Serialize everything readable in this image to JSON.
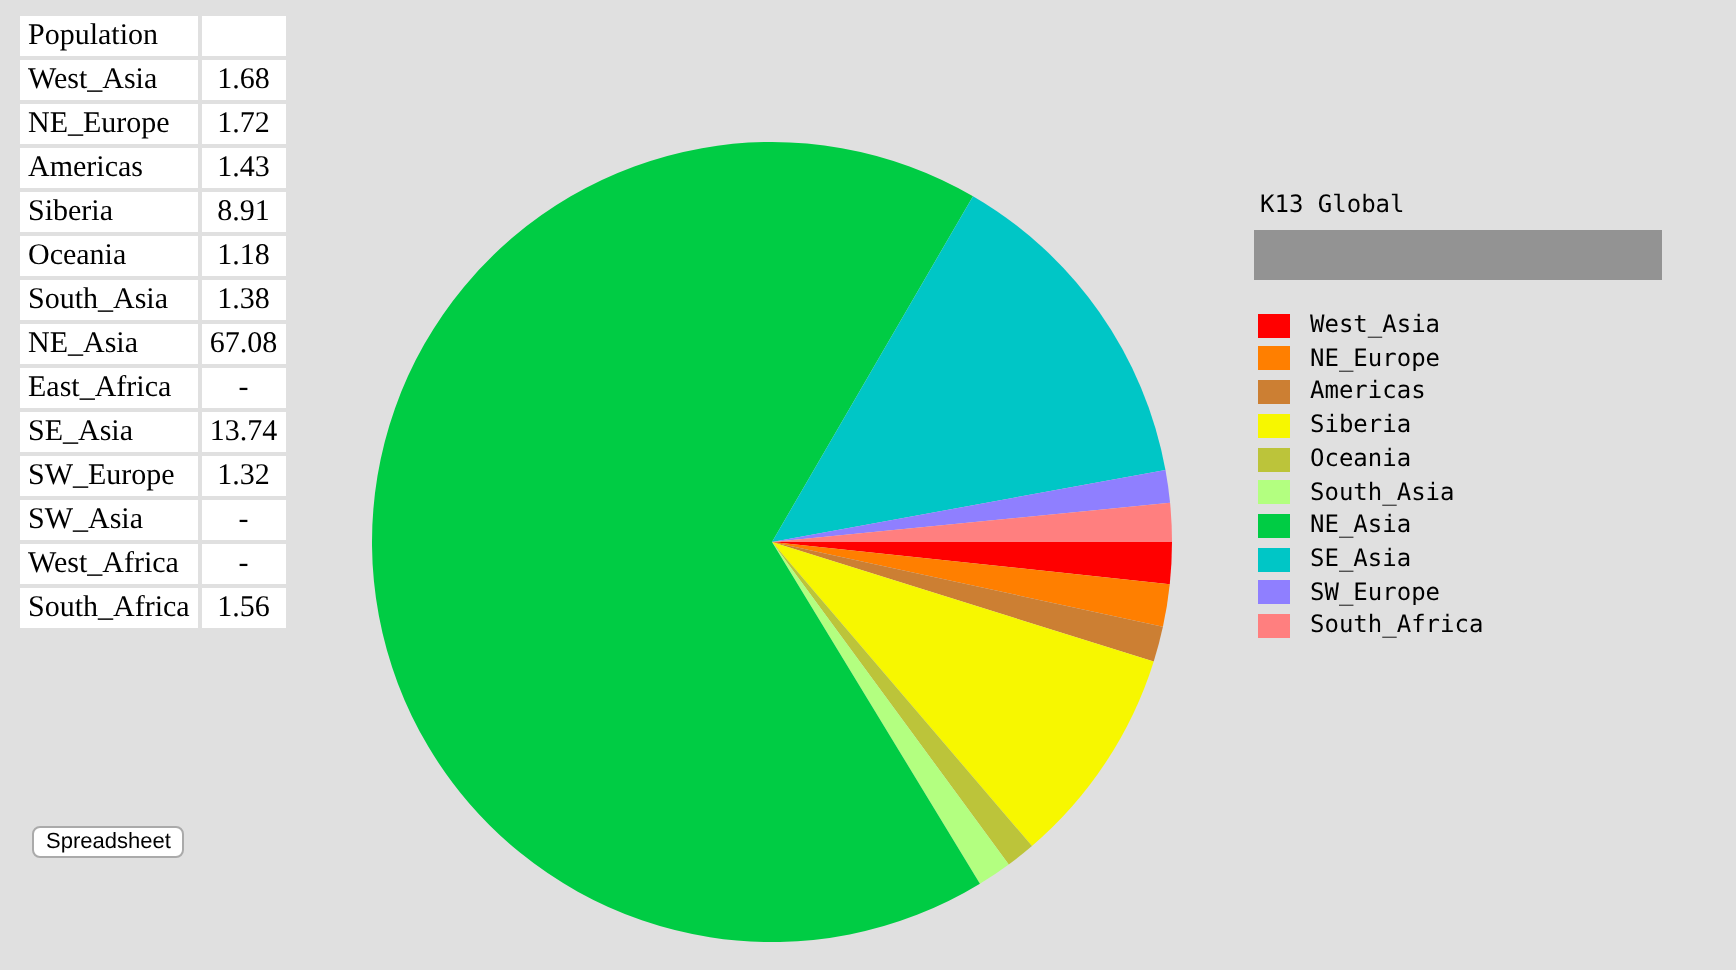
{
  "chart_data": [
    {
      "type": "other",
      "title": "Population",
      "data_labels": true,
      "categories": [
        "West_Asia",
        "NE_Europe",
        "Americas",
        "Siberia",
        "Oceania",
        "South_Asia",
        "NE_Asia",
        "East_Africa",
        "SE_Asia",
        "SW_Europe",
        "SW_Asia",
        "West_Africa",
        "South_Africa"
      ],
      "value_labels": [
        "1.68",
        "1.72",
        "1.43",
        "8.91",
        "1.18",
        "1.38",
        "67.08",
        "-",
        "13.74",
        "1.32",
        "-",
        "-",
        "1.56"
      ],
      "annotations": [
        "Spreadsheet"
      ]
    },
    {
      "type": "pie",
      "title": "K13 Global",
      "legend": "right",
      "categories": [
        "West_Asia",
        "NE_Europe",
        "Americas",
        "Siberia",
        "Oceania",
        "South_Asia",
        "NE_Asia",
        "SE_Asia",
        "SW_Europe",
        "South_Africa"
      ],
      "values": [
        1.68,
        1.72,
        1.43,
        8.91,
        1.18,
        1.38,
        67.08,
        13.74,
        1.32,
        1.56
      ],
      "colors": [
        "#ff0000",
        "#ff7f00",
        "#cc7f33",
        "#f7f700",
        "#bcc43a",
        "#b3ff80",
        "#00cc44",
        "#00c6c6",
        "#8f7fff",
        "#ff7f7f"
      ]
    }
  ]
}
